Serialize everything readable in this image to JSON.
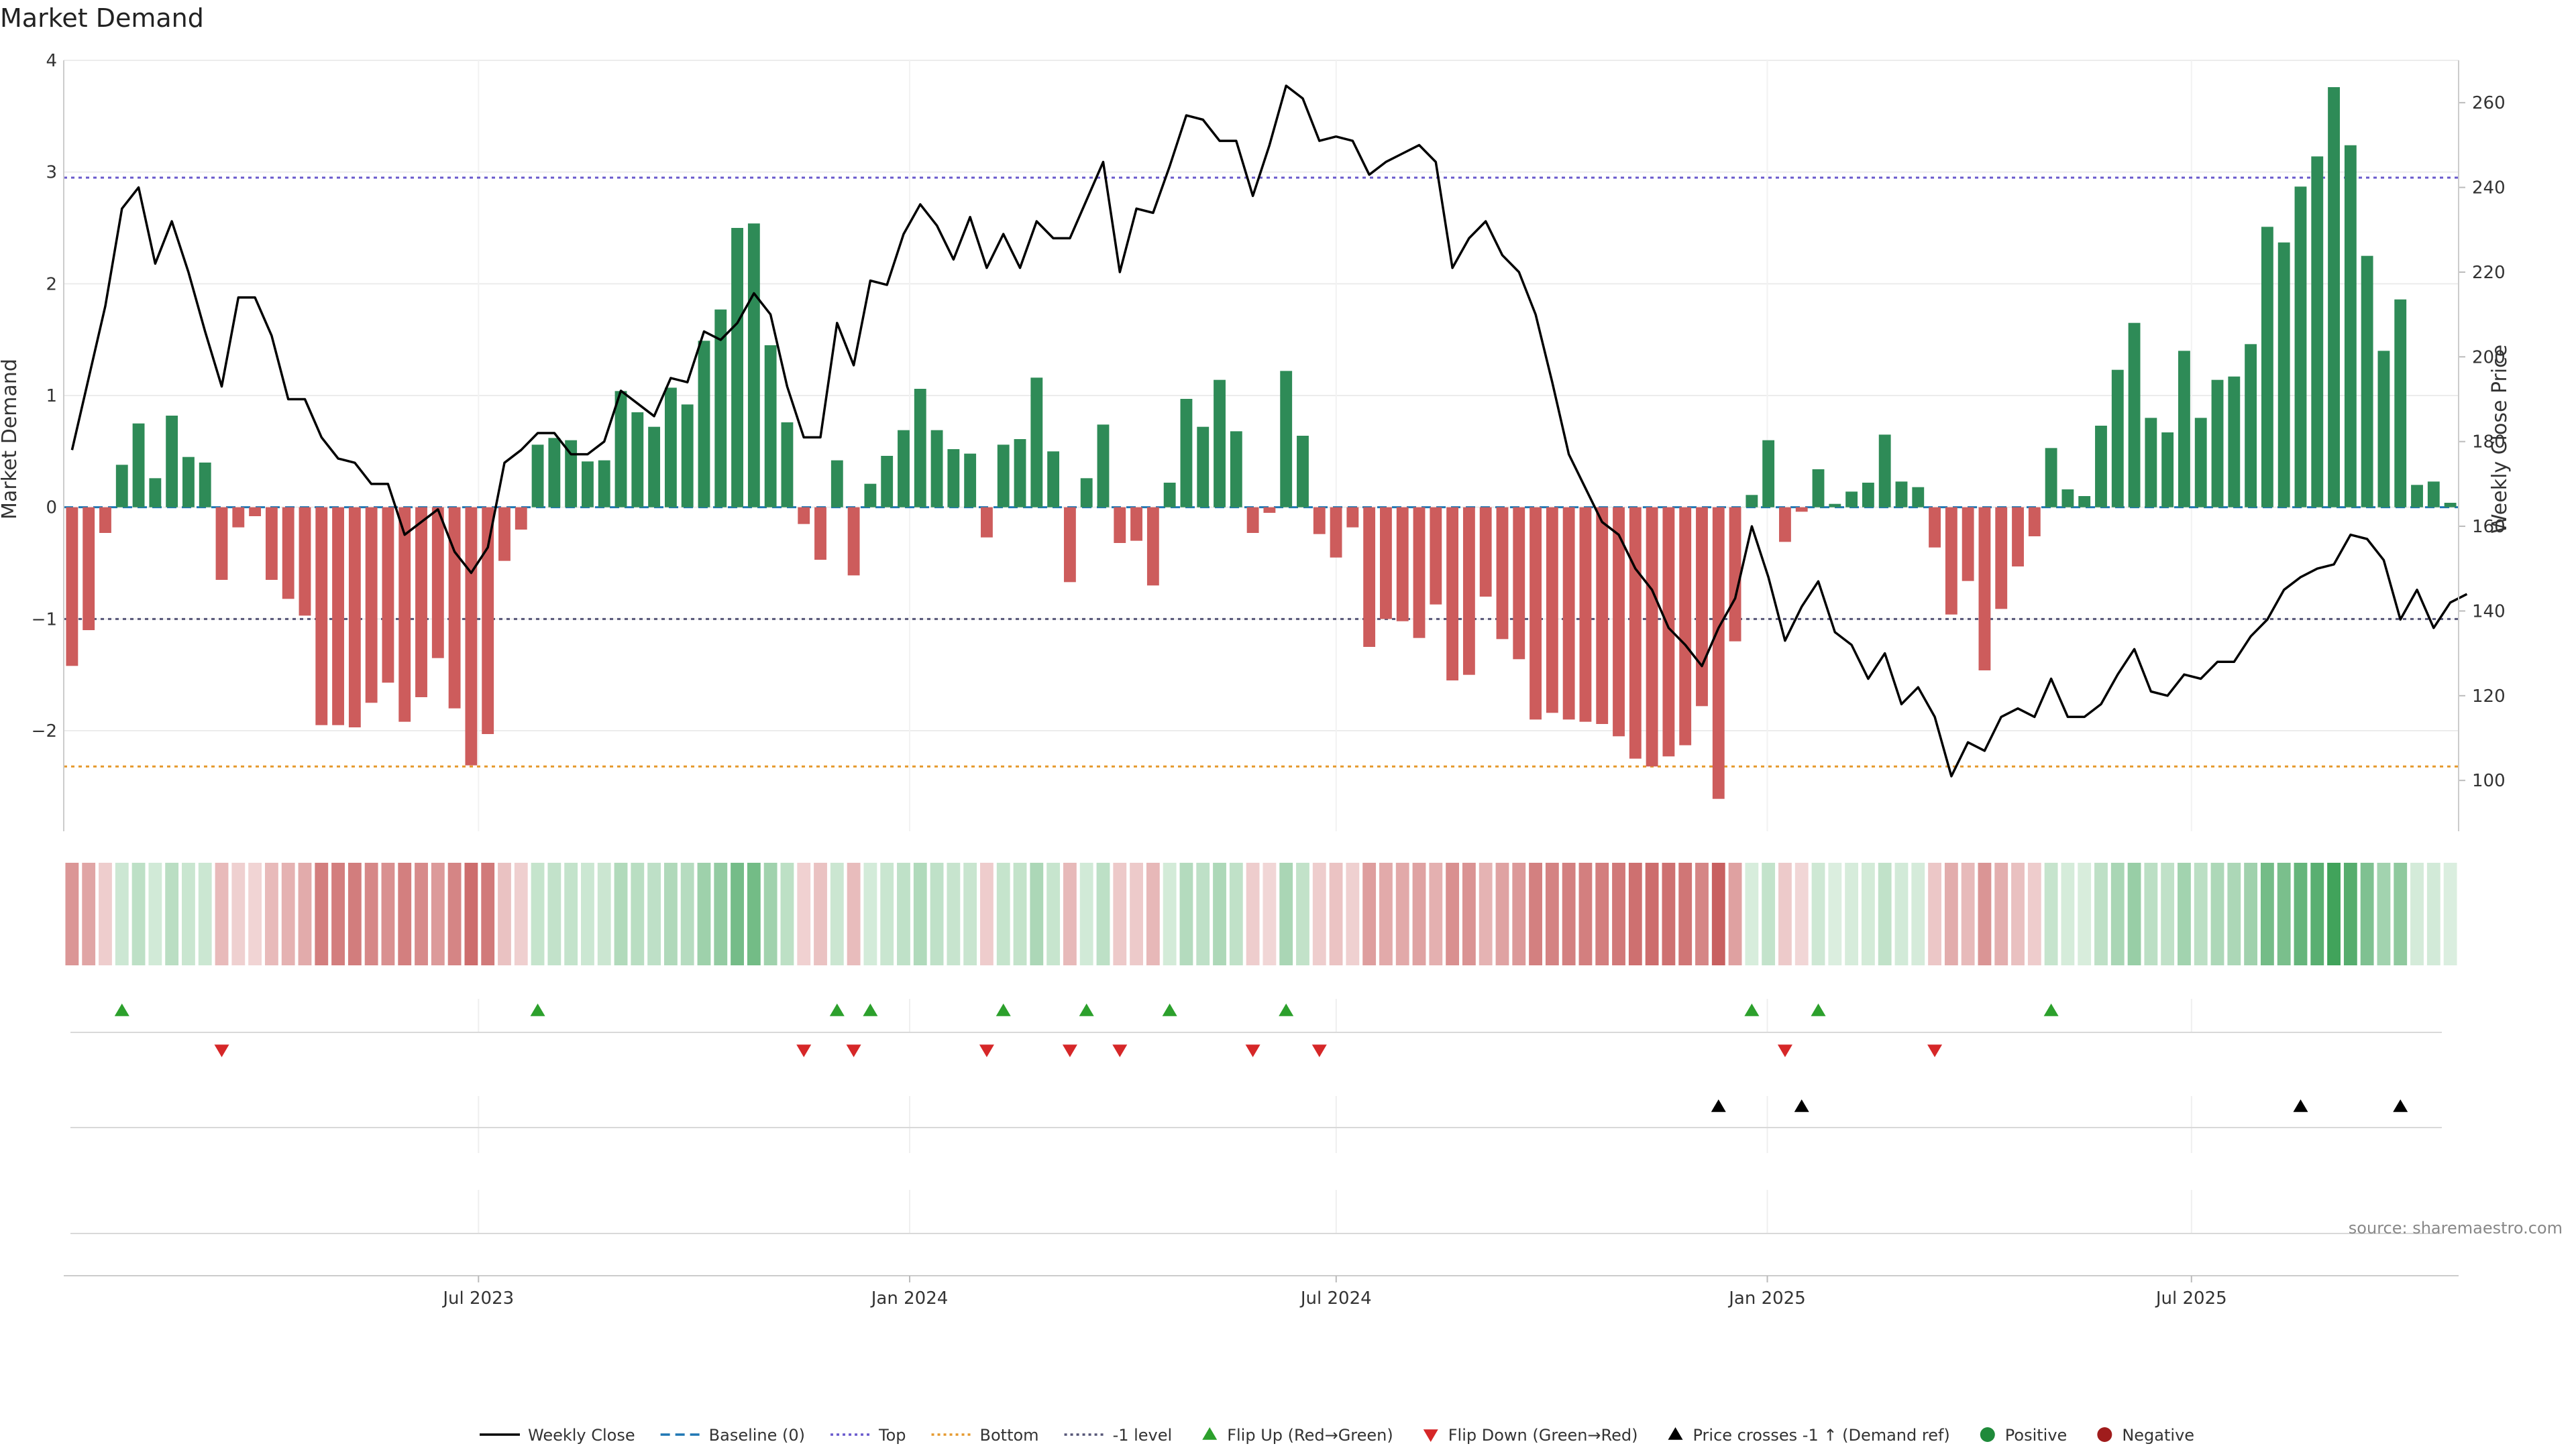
{
  "title": "Market Demand",
  "source_text": "source: sharemaestro.com",
  "colors": {
    "positive_bar": "#2e8b57",
    "negative_bar": "#cd5c5c",
    "price_line": "#000000",
    "top_line": "#6a5acd",
    "bottom_line": "#e69a2e",
    "minus1_line": "#555577",
    "flip_up": "#2ca02c",
    "flip_down": "#d62728",
    "cross": "#000000",
    "positive_dot": "#1f8a3a",
    "negative_dot": "#a01c1c",
    "baseline": "#1f77b4"
  },
  "chart_data": {
    "type": "bar",
    "title": "Market Demand",
    "ylabel": "Market Demand",
    "y2label": "Weekly Close Price",
    "ylim": [
      -2.9,
      4.0
    ],
    "y2lim": [
      88,
      270
    ],
    "yticks": [
      -2,
      -1,
      0,
      1,
      2,
      3,
      4
    ],
    "y2ticks": [
      100,
      120,
      140,
      160,
      180,
      200,
      220,
      240,
      260
    ],
    "x_start": "2023-01-05",
    "x_end": "2025-10-23",
    "xticks": [
      {
        "date": "2023-07-01",
        "label": "Jul 2023"
      },
      {
        "date": "2024-01-01",
        "label": "Jan 2024"
      },
      {
        "date": "2024-07-01",
        "label": "Jul 2024"
      },
      {
        "date": "2025-01-01",
        "label": "Jan 2025"
      },
      {
        "date": "2025-07-01",
        "label": "Jul 2025"
      }
    ],
    "reference_lines": [
      {
        "name": "Top",
        "value": 2.95
      },
      {
        "name": "-1 level",
        "value": -1.0
      },
      {
        "name": "Bottom",
        "value": -2.32
      }
    ],
    "series": [
      {
        "name": "Market Demand",
        "values": [
          -1.42,
          -1.1,
          -0.23,
          0.38,
          0.75,
          0.26,
          0.82,
          0.45,
          0.4,
          -0.65,
          -0.18,
          -0.08,
          -0.65,
          -0.82,
          -0.97,
          -1.95,
          -1.95,
          -1.97,
          -1.75,
          -1.57,
          -1.92,
          -1.7,
          -1.35,
          -1.8,
          -2.31,
          -2.03,
          -0.48,
          -0.2,
          0.56,
          0.62,
          0.6,
          0.41,
          0.42,
          1.04,
          0.85,
          0.72,
          1.07,
          0.92,
          1.49,
          1.77,
          2.5,
          2.54,
          1.45,
          0.76,
          -0.15,
          -0.47,
          0.42,
          -0.61,
          0.21,
          0.46,
          0.69,
          1.06,
          0.69,
          0.52,
          0.48,
          -0.27,
          0.56,
          0.61,
          1.16,
          0.5,
          -0.67,
          0.26,
          0.74,
          -0.32,
          -0.3,
          -0.7,
          0.22,
          0.97,
          0.72,
          1.14,
          0.68,
          -0.23,
          -0.05,
          1.22,
          0.64,
          -0.24,
          -0.45,
          -0.18,
          -1.25,
          -1.0,
          -1.02,
          -1.17,
          -0.87,
          -1.55,
          -1.5,
          -0.8,
          -1.18,
          -1.36,
          -1.9,
          -1.84,
          -1.9,
          -1.92,
          -1.94,
          -2.05,
          -2.25,
          -2.32,
          -2.23,
          -2.13,
          -1.78,
          -2.61,
          -1.2,
          0.11,
          0.6,
          -0.31,
          -0.04,
          0.34,
          0.03,
          0.14,
          0.22,
          0.65,
          0.23,
          0.18,
          -0.36,
          -0.96,
          -0.66,
          -1.46,
          -0.91,
          -0.53,
          -0.26,
          0.53,
          0.16,
          0.1,
          0.73,
          1.23,
          1.65,
          0.8,
          0.67,
          1.4,
          0.8,
          1.14,
          1.17,
          1.46,
          2.51,
          2.37,
          2.87,
          3.14,
          3.76,
          3.24,
          2.25,
          1.4,
          1.86,
          0.2,
          0.23,
          0.04
        ]
      },
      {
        "name": "Weekly Close",
        "values": [
          178,
          195,
          212,
          235,
          240,
          222,
          232,
          220,
          206,
          193,
          214,
          214,
          205,
          190,
          190,
          181,
          176,
          175,
          170,
          170,
          158,
          161,
          164,
          154,
          149,
          155,
          175,
          178,
          182,
          182,
          177,
          177,
          180,
          192,
          189,
          186,
          195,
          194,
          206,
          204,
          208,
          215,
          210,
          193,
          181,
          181,
          208,
          198,
          218,
          217,
          229,
          236,
          231,
          223,
          233,
          221,
          229,
          221,
          232,
          228,
          228,
          237,
          246,
          220,
          235,
          234,
          245,
          257,
          256,
          251,
          251,
          238,
          250,
          264,
          261,
          251,
          252,
          251,
          243,
          246,
          248,
          250,
          246,
          221,
          228,
          232,
          224,
          220,
          210,
          194,
          177,
          169,
          161,
          158,
          150,
          145,
          136,
          132,
          127,
          136,
          143,
          160,
          148,
          133,
          141,
          147,
          135,
          132,
          124,
          130,
          118,
          122,
          115,
          101,
          109,
          107,
          115,
          117,
          115,
          124,
          115,
          115,
          118,
          125,
          131,
          121,
          120,
          125,
          124,
          128,
          128,
          134,
          138,
          145,
          148,
          150,
          151,
          158,
          157,
          152,
          138,
          145,
          136,
          142,
          144
        ]
      }
    ],
    "flip_up_indices": [
      3,
      28,
      46,
      48,
      56,
      61,
      66,
      73,
      101,
      105,
      119
    ],
    "flip_down_indices": [
      9,
      44,
      47,
      55,
      60,
      63,
      71,
      75,
      103,
      112
    ],
    "price_cross_indices": [
      99,
      104,
      134,
      140
    ]
  },
  "legend": [
    {
      "label": "Weekly Close",
      "kind": "line",
      "color": "#000000",
      "dash": ""
    },
    {
      "label": "Baseline (0)",
      "kind": "line",
      "color": "#1f77b4",
      "dash": "14,8"
    },
    {
      "label": "Top",
      "kind": "line",
      "color": "#6a5acd",
      "dash": "4,5"
    },
    {
      "label": "Bottom",
      "kind": "line",
      "color": "#e69a2e",
      "dash": "4,5"
    },
    {
      "label": "-1 level",
      "kind": "line",
      "color": "#555577",
      "dash": "4,5"
    },
    {
      "label": "Flip Up (Red→Green)",
      "kind": "tri-up",
      "color": "#2ca02c"
    },
    {
      "label": "Flip Down (Green→Red)",
      "kind": "tri-down",
      "color": "#d62728"
    },
    {
      "label": "Price crosses -1 ↑ (Demand ref)",
      "kind": "tri-up",
      "color": "#000000"
    },
    {
      "label": "Positive",
      "kind": "dot",
      "color": "#1f8a3a"
    },
    {
      "label": "Negative",
      "kind": "dot",
      "color": "#a01c1c"
    }
  ]
}
